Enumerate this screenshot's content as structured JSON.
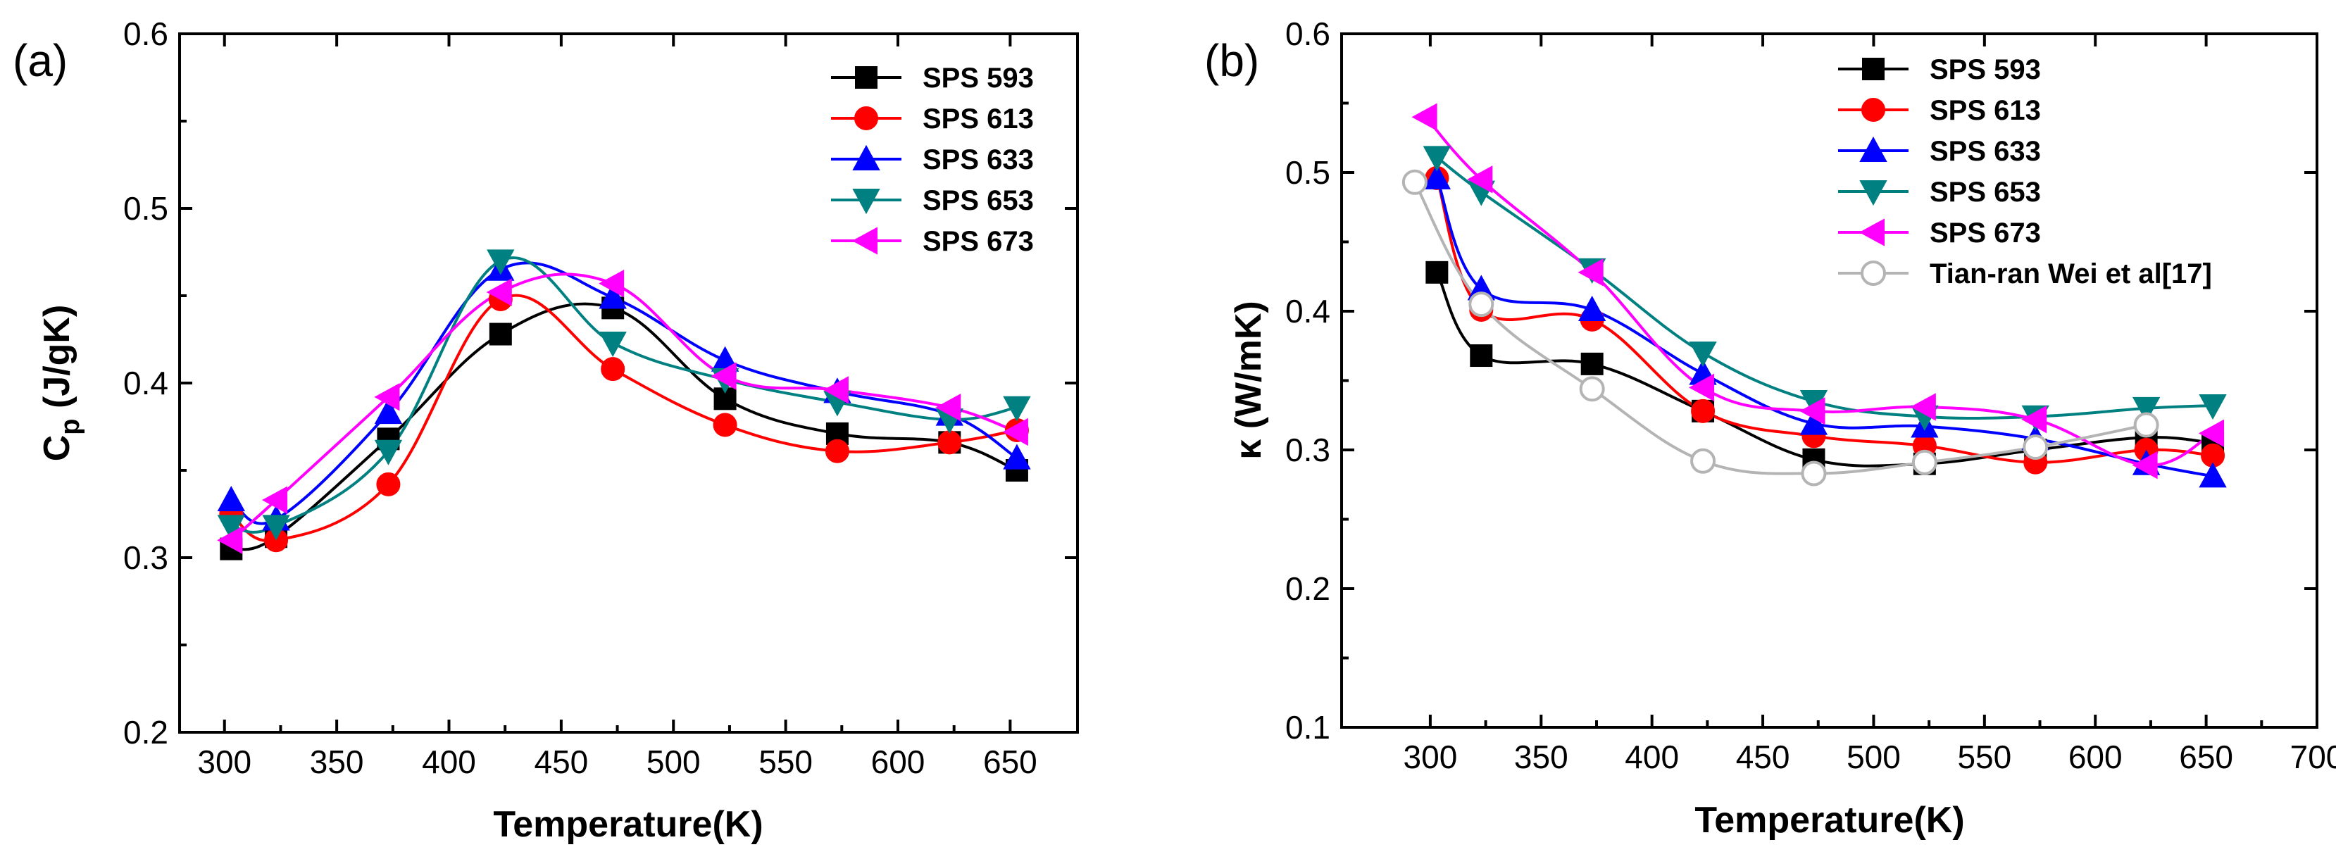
{
  "chart_data": [
    {
      "type": "line",
      "panel_label": "(a)",
      "title": "",
      "xlabel": "Temperature(K)",
      "ylabel_main": "C",
      "ylabel_sub": "p",
      "ylabel_rest": " (J/gK)",
      "xlim": [
        280,
        680
      ],
      "ylim": [
        0.2,
        0.6
      ],
      "xticks": [
        300,
        350,
        400,
        450,
        500,
        550,
        600,
        650
      ],
      "xtick_labels": [
        "300",
        "350",
        "400",
        "450",
        "500",
        "550",
        "600",
        "650"
      ],
      "yticks": [
        0.2,
        0.3,
        0.4,
        0.5,
        0.6
      ],
      "ytick_labels": [
        "0.2",
        "0.3",
        "0.4",
        "0.5",
        "0.6"
      ],
      "legend_position": "top-right",
      "series": [
        {
          "name": "SPS 593",
          "color": "#000000",
          "marker": "square",
          "filled": true,
          "x": [
            303,
            323,
            373,
            423,
            473,
            523,
            573,
            623,
            653
          ],
          "y": [
            0.305,
            0.312,
            0.368,
            0.428,
            0.443,
            0.391,
            0.371,
            0.366,
            0.35
          ]
        },
        {
          "name": "SPS 613",
          "color": "#ff0000",
          "marker": "circle",
          "filled": true,
          "x": [
            303,
            323,
            373,
            423,
            473,
            523,
            573,
            623,
            653
          ],
          "y": [
            0.325,
            0.31,
            0.342,
            0.448,
            0.408,
            0.376,
            0.361,
            0.366,
            0.373
          ]
        },
        {
          "name": "SPS 633",
          "color": "#0000ff",
          "marker": "triangle-up",
          "filled": true,
          "x": [
            303,
            323,
            373,
            423,
            473,
            523,
            573,
            623,
            653
          ],
          "y": [
            0.333,
            0.322,
            0.383,
            0.465,
            0.449,
            0.413,
            0.395,
            0.382,
            0.357
          ]
        },
        {
          "name": "SPS 653",
          "color": "#008080",
          "marker": "triangle-down",
          "filled": true,
          "x": [
            303,
            323,
            373,
            423,
            473,
            523,
            573,
            623,
            653
          ],
          "y": [
            0.318,
            0.318,
            0.361,
            0.47,
            0.423,
            0.402,
            0.389,
            0.379,
            0.386
          ]
        },
        {
          "name": "SPS 673",
          "color": "#ff00ff",
          "marker": "triangle-left",
          "filled": true,
          "x": [
            303,
            323,
            373,
            423,
            473,
            523,
            573,
            623,
            653
          ],
          "y": [
            0.31,
            0.333,
            0.392,
            0.452,
            0.457,
            0.404,
            0.396,
            0.386,
            0.372
          ]
        }
      ]
    },
    {
      "type": "line",
      "panel_label": "(b)",
      "title": "",
      "xlabel": "Temperature(K)",
      "ylabel": "κ (W/mK)",
      "xlim": [
        260,
        700
      ],
      "ylim": [
        0.1,
        0.6
      ],
      "xticks": [
        300,
        350,
        400,
        450,
        500,
        550,
        600,
        650,
        700
      ],
      "xtick_labels": [
        "300",
        "350",
        "400",
        "450",
        "500",
        "550",
        "600",
        "650",
        "700"
      ],
      "yticks": [
        0.1,
        0.2,
        0.3,
        0.4,
        0.5,
        0.6
      ],
      "ytick_labels": [
        "0.1",
        "0.2",
        "0.3",
        "0.4",
        "0.5",
        "0.6"
      ],
      "legend_position": "top-right",
      "series": [
        {
          "name": "SPS 593",
          "color": "#000000",
          "marker": "square",
          "filled": true,
          "x": [
            303,
            323,
            373,
            423,
            473,
            523,
            573,
            623,
            653
          ],
          "y": [
            0.428,
            0.368,
            0.362,
            0.328,
            0.293,
            0.29,
            0.3,
            0.309,
            0.305
          ]
        },
        {
          "name": "SPS 613",
          "color": "#ff0000",
          "marker": "circle",
          "filled": true,
          "x": [
            303,
            323,
            373,
            423,
            473,
            523,
            573,
            623,
            653
          ],
          "y": [
            0.496,
            0.401,
            0.394,
            0.328,
            0.31,
            0.303,
            0.291,
            0.3,
            0.296
          ]
        },
        {
          "name": "SPS 633",
          "color": "#0000ff",
          "marker": "triangle-up",
          "filled": true,
          "x": [
            303,
            323,
            373,
            423,
            473,
            523,
            573,
            623,
            653
          ],
          "y": [
            0.496,
            0.416,
            0.401,
            0.355,
            0.319,
            0.317,
            0.308,
            0.29,
            0.281
          ]
        },
        {
          "name": "SPS 653",
          "color": "#008080",
          "marker": "triangle-down",
          "filled": true,
          "x": [
            303,
            323,
            373,
            423,
            473,
            523,
            573,
            623,
            653
          ],
          "y": [
            0.511,
            0.486,
            0.43,
            0.37,
            0.335,
            0.324,
            0.324,
            0.33,
            0.332
          ]
        },
        {
          "name": "SPS 673",
          "color": "#ff00ff",
          "marker": "triangle-left",
          "filled": true,
          "x": [
            298,
            323,
            373,
            423,
            473,
            523,
            573,
            623,
            653
          ],
          "y": [
            0.54,
            0.495,
            0.428,
            0.345,
            0.328,
            0.331,
            0.322,
            0.289,
            0.312
          ]
        },
        {
          "name": "Tian-ran Wei et al[17]",
          "color": "#b4b4b4",
          "marker": "circle",
          "filled": false,
          "x": [
            293,
            323,
            373,
            423,
            473,
            523,
            573,
            623
          ],
          "y": [
            0.493,
            0.405,
            0.344,
            0.292,
            0.283,
            0.291,
            0.302,
            0.318
          ]
        }
      ]
    }
  ]
}
